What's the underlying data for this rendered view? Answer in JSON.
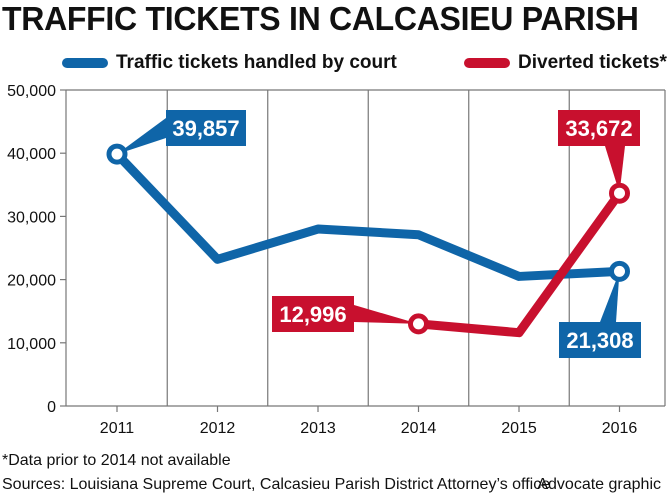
{
  "chart_data": {
    "type": "line",
    "title": "TRAFFIC TICKETS IN CALCASIEU PARISH",
    "categories": [
      "2011",
      "2012",
      "2013",
      "2014",
      "2015",
      "2016"
    ],
    "ylim": [
      0,
      50000
    ],
    "yticks": [
      0,
      10000,
      20000,
      30000,
      40000,
      50000
    ],
    "ytick_labels": [
      "0",
      "10,000",
      "20,000",
      "30,000",
      "40,000",
      "50,000"
    ],
    "grid": "vertical",
    "legend": "top",
    "series": [
      {
        "name": "Traffic tickets handled by court",
        "color": "#0f65a8",
        "values": [
          39857,
          23200,
          28000,
          27100,
          20500,
          21308
        ],
        "callouts": [
          {
            "index": 0,
            "label": "39,857"
          },
          {
            "index": 5,
            "label": "21,308"
          }
        ]
      },
      {
        "name": "Diverted tickets*",
        "color": "#c8102e",
        "start_index": 3,
        "values": [
          null,
          null,
          null,
          12996,
          11600,
          33672
        ],
        "callouts": [
          {
            "index": 3,
            "label": "12,996"
          },
          {
            "index": 5,
            "label": "33,672"
          }
        ]
      }
    ],
    "footnote": "*Data prior to 2014 not available",
    "sources": "Sources: Louisiana Supreme Court, Calcasieu Parish District Attorney’s office",
    "credit": "Advocate graphic"
  }
}
